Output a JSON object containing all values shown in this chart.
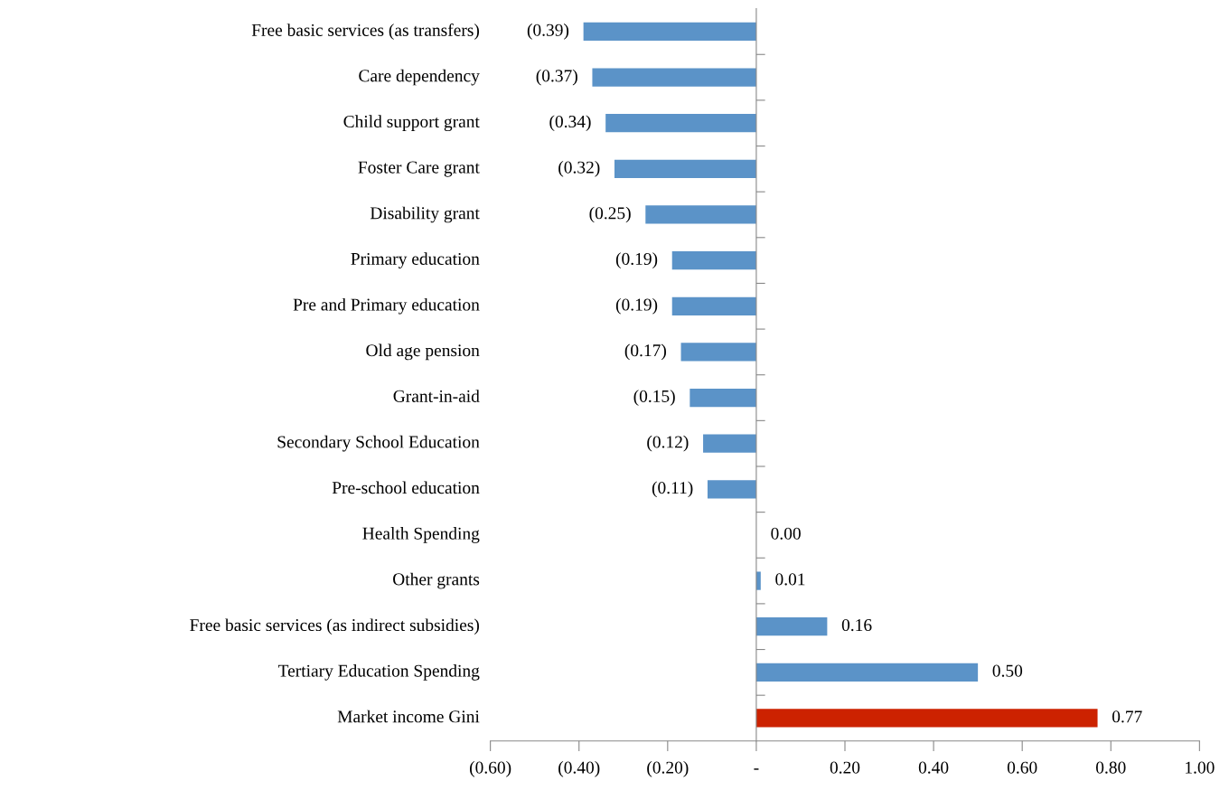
{
  "chart_data": {
    "type": "bar",
    "orientation": "horizontal",
    "categories": [
      "Free basic services (as transfers)",
      "Care dependency",
      "Child support grant",
      "Foster Care grant",
      "Disability grant",
      "Primary education",
      "Pre and Primary education",
      "Old age pension",
      "Grant-in-aid",
      "Secondary School Education",
      "Pre-school education",
      "Health Spending",
      "Other grants",
      "Free basic services (as indirect subsidies)",
      "Tertiary Education Spending",
      "Market income Gini"
    ],
    "values": [
      -0.39,
      -0.37,
      -0.34,
      -0.32,
      -0.25,
      -0.19,
      -0.19,
      -0.17,
      -0.15,
      -0.12,
      -0.11,
      0.0,
      0.01,
      0.16,
      0.5,
      0.77
    ],
    "value_labels": [
      "(0.39)",
      "(0.37)",
      "(0.34)",
      "(0.32)",
      "(0.25)",
      "(0.19)",
      "(0.19)",
      "(0.17)",
      "(0.15)",
      "(0.12)",
      "(0.11)",
      "0.00",
      "0.01",
      "0.16",
      "0.50",
      "0.77"
    ],
    "colors": [
      "#5b93c8",
      "#5b93c8",
      "#5b93c8",
      "#5b93c8",
      "#5b93c8",
      "#5b93c8",
      "#5b93c8",
      "#5b93c8",
      "#5b93c8",
      "#5b93c8",
      "#5b93c8",
      "#5b93c8",
      "#5b93c8",
      "#5b93c8",
      "#5b93c8",
      "#cc2200"
    ],
    "xlim": [
      -0.6,
      1.0
    ],
    "xticks": [
      {
        "value": -0.6,
        "label": "(0.60)"
      },
      {
        "value": -0.4,
        "label": "(0.40)"
      },
      {
        "value": -0.2,
        "label": "(0.20)"
      },
      {
        "value": 0,
        "label": "-"
      },
      {
        "value": 0.2,
        "label": "0.20"
      },
      {
        "value": 0.4,
        "label": "0.40"
      },
      {
        "value": 0.6,
        "label": "0.60"
      },
      {
        "value": 0.8,
        "label": "0.80"
      },
      {
        "value": 1.0,
        "label": "1.00"
      }
    ],
    "legend": false
  }
}
